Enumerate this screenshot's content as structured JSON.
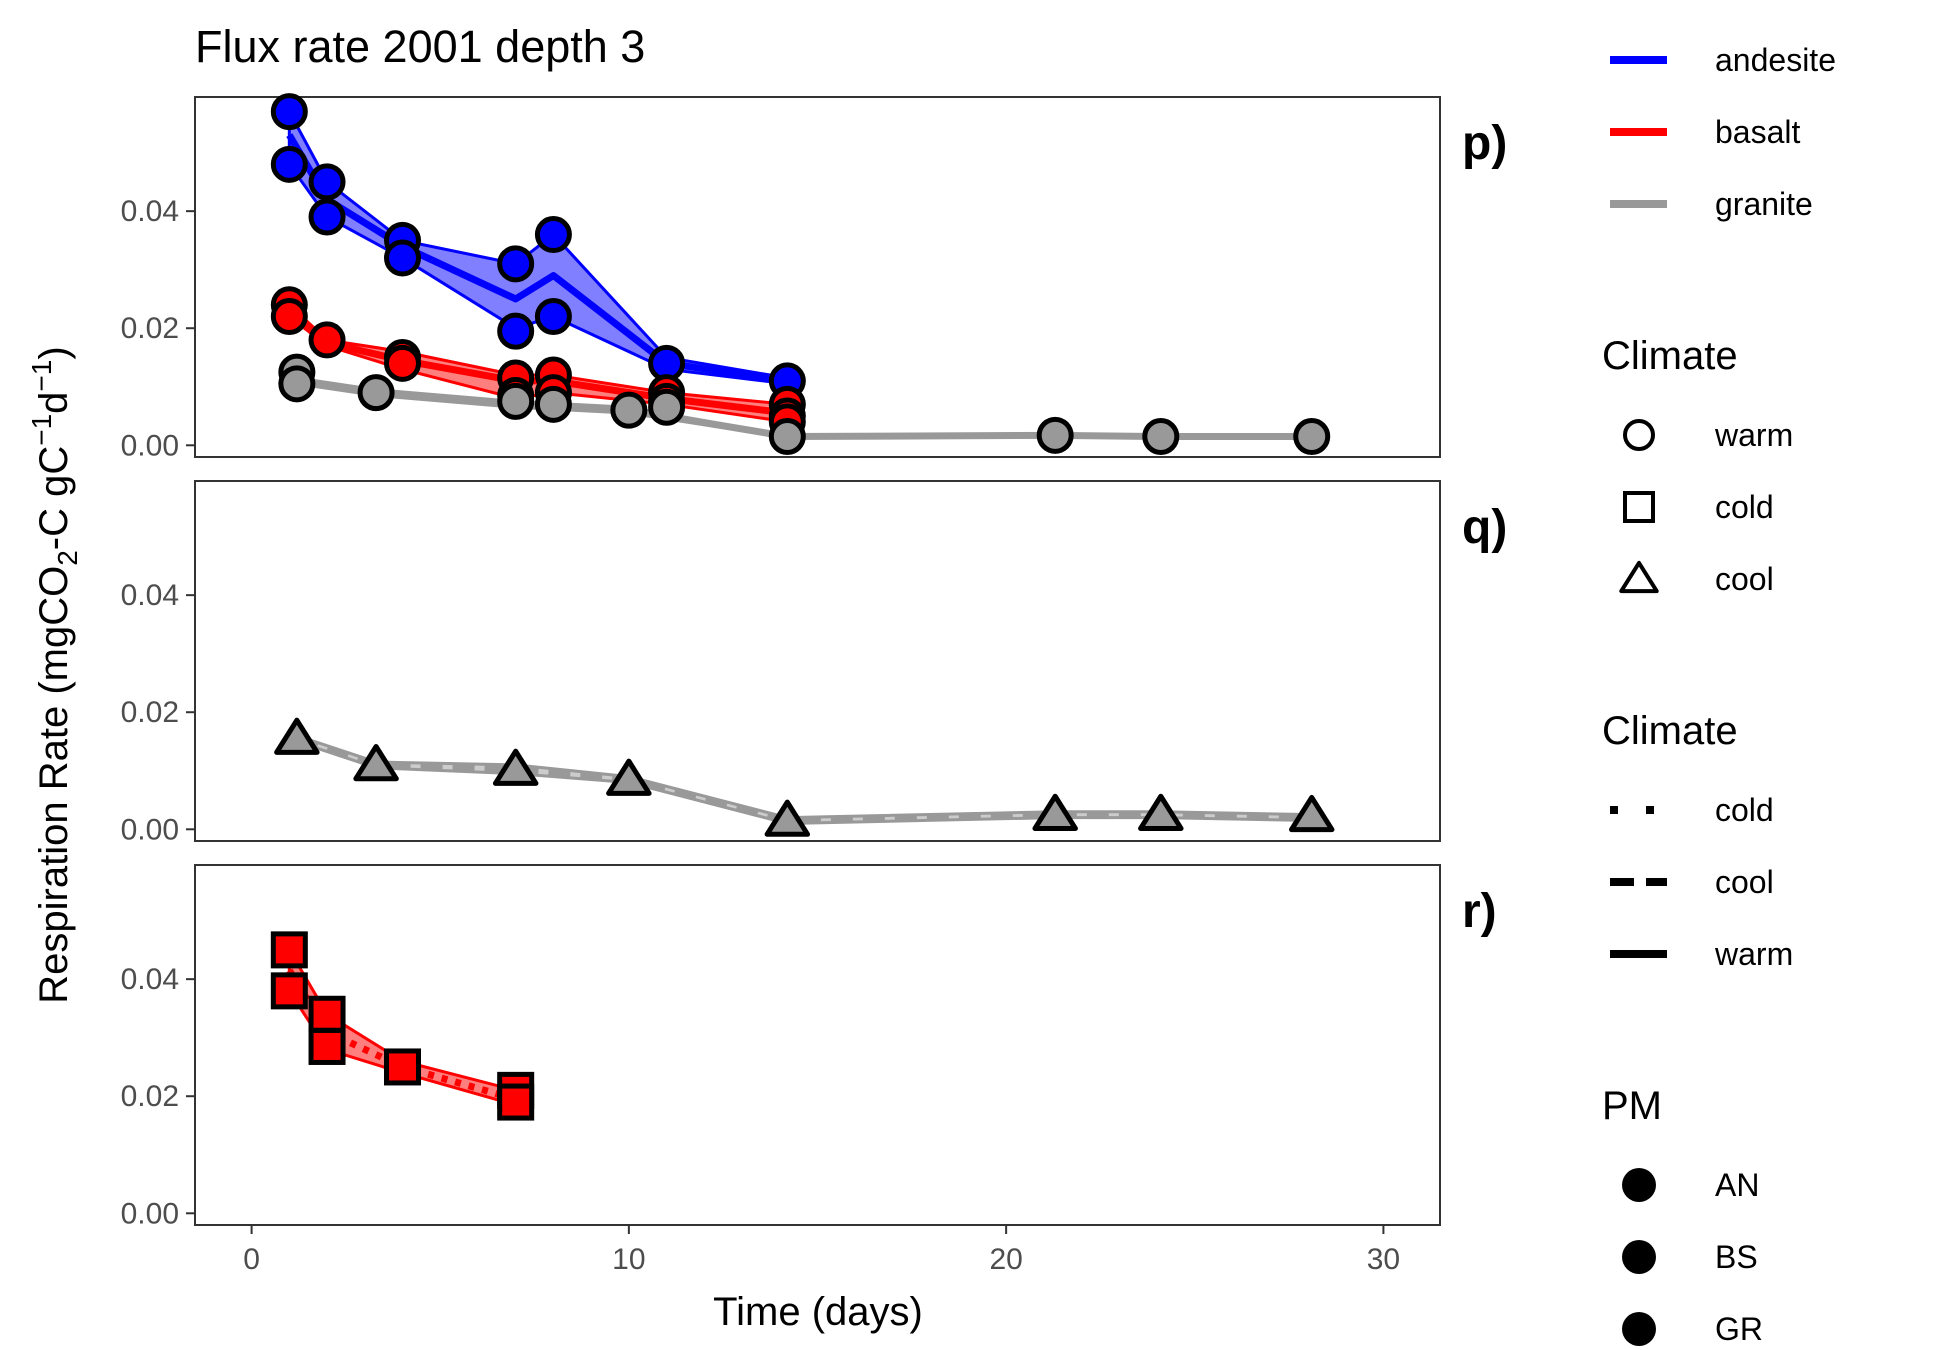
{
  "chart_data": {
    "type": "line",
    "title": "Flux rate 2001 depth  3",
    "xlabel": "Time (days)",
    "ylabel": {
      "parts": [
        "Respiration Rate (mgCO",
        "2",
        "-C gC",
        "−1",
        "d",
        "−1",
        ")"
      ]
    },
    "xlim": [
      -1.5,
      31.5
    ],
    "ylim": [
      -0.002,
      0.0595
    ],
    "x_ticks": [
      0,
      10,
      20,
      30
    ],
    "y_ticks": [
      0.0,
      0.02,
      0.04
    ],
    "y_tick_labels": [
      "0.00",
      "0.02",
      "0.04"
    ],
    "grid": false,
    "legend_position": "right",
    "colors": {
      "andesite": "#0000ff",
      "basalt": "#ff0000",
      "granite": "#999999"
    },
    "panels": [
      {
        "tag": "p)",
        "series": [
          {
            "pm": "andesite",
            "shape": "circle",
            "linetype": "solid",
            "x": [
              1,
              2,
              4,
              7,
              8,
              11,
              14.2
            ],
            "mean": [
              0.053,
              0.042,
              0.034,
              0.025,
              0.029,
              0.014,
              0.011
            ],
            "band_low": [
              0.048,
              0.039,
              0.032,
              0.02,
              0.022,
              0.013,
              0.0105
            ],
            "band_high": [
              0.057,
              0.045,
              0.035,
              0.031,
              0.036,
              0.015,
              0.0115
            ],
            "points": [
              [
                1,
                0.057
              ],
              [
                1,
                0.048
              ],
              [
                2,
                0.045
              ],
              [
                2,
                0.039
              ],
              [
                4,
                0.035
              ],
              [
                4,
                0.032
              ],
              [
                7,
                0.031
              ],
              [
                7,
                0.0195
              ],
              [
                8,
                0.036
              ],
              [
                8,
                0.022
              ],
              [
                11,
                0.014
              ],
              [
                14.2,
                0.011
              ]
            ]
          },
          {
            "pm": "basalt",
            "shape": "circle",
            "linetype": "solid",
            "x": [
              1,
              2,
              4,
              7,
              8,
              11,
              14.2
            ],
            "mean": [
              0.023,
              0.0175,
              0.0145,
              0.011,
              0.011,
              0.008,
              0.0055
            ],
            "band_low": [
              0.022,
              0.017,
              0.013,
              0.008,
              0.009,
              0.007,
              0.004
            ],
            "band_high": [
              0.024,
              0.018,
              0.016,
              0.012,
              0.012,
              0.009,
              0.007
            ],
            "points": [
              [
                1,
                0.024
              ],
              [
                1,
                0.022
              ],
              [
                2,
                0.018
              ],
              [
                4,
                0.015
              ],
              [
                4,
                0.014
              ],
              [
                7,
                0.0115
              ],
              [
                7,
                0.0085
              ],
              [
                8,
                0.012
              ],
              [
                8,
                0.009
              ],
              [
                11,
                0.009
              ],
              [
                11,
                0.0075
              ],
              [
                14.2,
                0.007
              ],
              [
                14.2,
                0.005
              ],
              [
                14.2,
                0.004
              ]
            ]
          },
          {
            "pm": "granite",
            "shape": "circle",
            "linetype": "solid",
            "x": [
              1.2,
              3.3,
              7,
              10,
              14.2,
              21.3,
              24.1,
              28.1
            ],
            "mean": [
              0.011,
              0.009,
              0.007,
              0.006,
              0.0015,
              0.0017,
              0.0015,
              0.0015
            ],
            "band_low": [
              0.0105,
              0.0085,
              0.0065,
              0.0055,
              0.0013,
              0.0015,
              0.0013,
              0.0013
            ],
            "band_high": [
              0.0115,
              0.0095,
              0.0075,
              0.0065,
              0.0017,
              0.0019,
              0.0017,
              0.0017
            ],
            "points": [
              [
                1.2,
                0.0125
              ],
              [
                1.2,
                0.0105
              ],
              [
                3.3,
                0.009
              ],
              [
                7,
                0.0075
              ],
              [
                8,
                0.007
              ],
              [
                10,
                0.006
              ],
              [
                11,
                0.0065
              ],
              [
                14.2,
                0.0015
              ],
              [
                21.3,
                0.0017
              ],
              [
                24.1,
                0.0015
              ],
              [
                28.1,
                0.0015
              ]
            ]
          }
        ]
      },
      {
        "tag": "q)",
        "series": [
          {
            "pm": "granite",
            "shape": "triangle",
            "linetype": "dashed",
            "x": [
              1.2,
              3.3,
              7,
              10,
              14.2,
              21.3,
              24.1,
              28.1
            ],
            "mean": [
              0.0155,
              0.011,
              0.0102,
              0.0085,
              0.0015,
              0.0025,
              0.0025,
              0.002
            ],
            "band_low": [
              0.015,
              0.0105,
              0.0095,
              0.008,
              0.001,
              0.002,
              0.002,
              0.0015
            ],
            "band_high": [
              0.016,
              0.0115,
              0.011,
              0.009,
              0.002,
              0.003,
              0.003,
              0.0025
            ],
            "points": [
              [
                1.2,
                0.0155
              ],
              [
                3.3,
                0.011
              ],
              [
                7,
                0.0102
              ],
              [
                10,
                0.0085
              ],
              [
                14.2,
                0.0015
              ],
              [
                21.3,
                0.0025
              ],
              [
                24.1,
                0.0025
              ],
              [
                28.1,
                0.0023
              ]
            ]
          }
        ]
      },
      {
        "tag": "r)",
        "series": [
          {
            "pm": "basalt",
            "shape": "square",
            "linetype": "dotted",
            "x": [
              1,
              2,
              4,
              7
            ],
            "mean": [
              0.0415,
              0.031,
              0.025,
              0.0195
            ],
            "band_low": [
              0.038,
              0.028,
              0.024,
              0.0185
            ],
            "band_high": [
              0.045,
              0.034,
              0.026,
              0.021
            ],
            "points": [
              [
                1,
                0.045
              ],
              [
                1,
                0.038
              ],
              [
                2,
                0.034
              ],
              [
                2,
                0.0285
              ],
              [
                4,
                0.025
              ],
              [
                7,
                0.021
              ],
              [
                7,
                0.019
              ]
            ]
          }
        ]
      }
    ],
    "legends": [
      {
        "kind": "color",
        "title": "",
        "entries": [
          {
            "label": "andesite",
            "color": "#0000ff"
          },
          {
            "label": "basalt",
            "color": "#ff0000"
          },
          {
            "label": "granite",
            "color": "#999999"
          }
        ]
      },
      {
        "kind": "shape",
        "title": "Climate",
        "entries": [
          {
            "label": "warm",
            "shape": "circle"
          },
          {
            "label": "cold",
            "shape": "square"
          },
          {
            "label": "cool",
            "shape": "triangle"
          }
        ]
      },
      {
        "kind": "linetype",
        "title": "Climate",
        "entries": [
          {
            "label": "cold",
            "linetype": "dotted"
          },
          {
            "label": "cool",
            "linetype": "dashed"
          },
          {
            "label": "warm",
            "linetype": "solid"
          }
        ]
      },
      {
        "kind": "fill",
        "title": "PM",
        "entries": [
          {
            "label": "AN"
          },
          {
            "label": "BS"
          },
          {
            "label": "GR"
          }
        ]
      }
    ]
  }
}
